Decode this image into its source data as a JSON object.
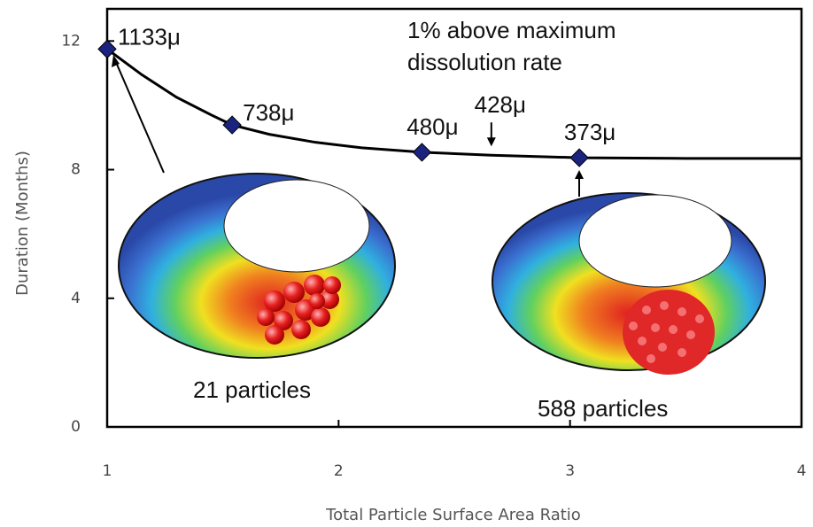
{
  "chart_data": {
    "type": "line",
    "x_label": "Total Particle Surface Area Ratio",
    "y_label": "Duration (Months)",
    "annotation": [
      "1% above maximum",
      "dissolution rate"
    ],
    "xlim": [
      1,
      4
    ],
    "xticks": [
      1,
      2,
      3,
      4
    ],
    "ylim": [
      0,
      13
    ],
    "yticks": [
      0,
      4,
      8,
      12
    ],
    "series": [
      {
        "color": "#1a237e",
        "marker": "diamond",
        "x": [
          1,
          1.54,
          2.36,
          3.04
        ],
        "values": [
          11.75,
          9.39,
          8.54,
          8.37
        ],
        "point_labels": [
          "1133μ",
          "738μ",
          "480μ",
          "373μ"
        ]
      },
      {
        "color": "#000000",
        "marker": "none",
        "x": [
          1,
          1.15,
          1.3,
          1.45,
          1.54,
          1.7,
          1.9,
          2.1,
          2.36,
          2.66,
          3.04,
          3.5,
          4
        ],
        "values": [
          11.75,
          10.95,
          10.25,
          9.7,
          9.39,
          9.1,
          8.85,
          8.68,
          8.54,
          8.45,
          8.37,
          8.35,
          8.35
        ]
      }
    ],
    "arrow_labels": [
      {
        "text": "428μ",
        "x": 2.66,
        "y": 8.45
      }
    ],
    "inset_labels": [
      "21 particles",
      "588 particles"
    ]
  }
}
